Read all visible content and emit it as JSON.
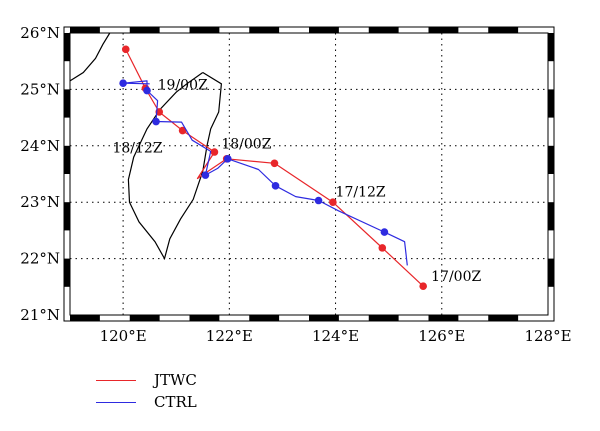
{
  "chart_data": {
    "type": "line",
    "title": "",
    "xlabel": "",
    "ylabel": "",
    "xlim": [
      119,
      128
    ],
    "ylim": [
      21,
      26
    ],
    "x_ticks": [
      120,
      122,
      124,
      126,
      128
    ],
    "x_tick_labels": [
      "120°E",
      "122°E",
      "124°E",
      "126°E",
      "128°E"
    ],
    "y_ticks": [
      21,
      22,
      23,
      24,
      25,
      26
    ],
    "y_tick_labels": [
      "21°N",
      "22°N",
      "23°N",
      "24°N",
      "25°N",
      "26°N"
    ],
    "grid": true,
    "series": [
      {
        "name": "JTWC",
        "color": "#e8262a",
        "points": [
          [
            125.65,
            21.51
          ],
          [
            124.88,
            22.19
          ],
          [
            123.95,
            23.0
          ],
          [
            122.85,
            23.69
          ],
          [
            121.95,
            23.77
          ],
          [
            121.72,
            23.89
          ],
          [
            121.12,
            24.27
          ],
          [
            120.68,
            24.6
          ],
          [
            120.42,
            25.02
          ],
          [
            120.05,
            25.71
          ]
        ],
        "track": [
          [
            125.65,
            21.51
          ],
          [
            124.88,
            22.19
          ],
          [
            123.95,
            23.0
          ],
          [
            122.85,
            23.69
          ],
          [
            121.95,
            23.77
          ],
          [
            121.6,
            23.55
          ],
          [
            121.4,
            23.42
          ],
          [
            121.72,
            23.89
          ],
          [
            121.12,
            24.27
          ],
          [
            120.68,
            24.6
          ],
          [
            120.42,
            25.02
          ],
          [
            120.05,
            25.71
          ]
        ]
      },
      {
        "name": "CTRL",
        "color": "#2e2be0",
        "points": [
          [
            124.92,
            22.47
          ],
          [
            123.68,
            23.03
          ],
          [
            122.87,
            23.29
          ],
          [
            121.97,
            23.77
          ],
          [
            121.55,
            23.48
          ],
          [
            120.62,
            24.43
          ],
          [
            120.45,
            24.98
          ],
          [
            120.0,
            25.11
          ]
        ],
        "track": [
          [
            125.35,
            21.88
          ],
          [
            125.3,
            22.3
          ],
          [
            124.92,
            22.47
          ],
          [
            124.05,
            22.85
          ],
          [
            123.68,
            23.03
          ],
          [
            123.25,
            23.1
          ],
          [
            122.87,
            23.29
          ],
          [
            122.55,
            23.58
          ],
          [
            121.97,
            23.77
          ],
          [
            121.78,
            23.6
          ],
          [
            121.55,
            23.48
          ],
          [
            121.65,
            23.9
          ],
          [
            121.3,
            24.1
          ],
          [
            121.1,
            24.42
          ],
          [
            120.62,
            24.43
          ],
          [
            120.65,
            24.8
          ],
          [
            120.45,
            24.98
          ],
          [
            120.45,
            25.15
          ],
          [
            120.0,
            25.11
          ],
          [
            120.5,
            25.1
          ]
        ]
      }
    ],
    "annotations": [
      {
        "text": "17/00Z",
        "x": 125.8,
        "y": 21.6
      },
      {
        "text": "17/12Z",
        "x": 124.0,
        "y": 23.1
      },
      {
        "text": "18/00Z",
        "x": 121.85,
        "y": 23.95
      },
      {
        "text": "18/12Z",
        "x": 119.8,
        "y": 23.88
      },
      {
        "text": "19/00Z",
        "x": 120.65,
        "y": 25.0
      }
    ],
    "coastline_color": "#000000"
  },
  "legend": {
    "items": [
      {
        "label": "JTWC",
        "color": "#e8262a"
      },
      {
        "label": "CTRL",
        "color": "#2e2be0"
      }
    ]
  }
}
